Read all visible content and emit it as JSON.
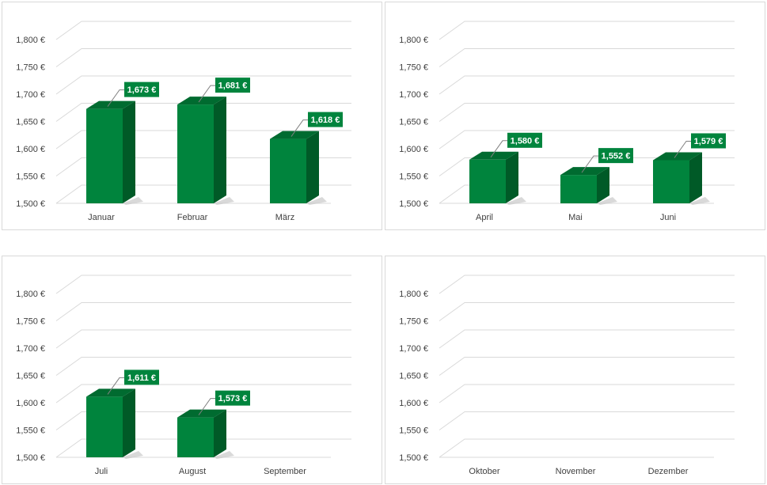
{
  "colors": {
    "bar_front": "#00843d",
    "bar_side": "#005a27",
    "bar_top": "#006b30",
    "label_bg": "#00843d",
    "grid": "#d9d9d9",
    "text": "#404040"
  },
  "chart_data": [
    {
      "type": "bar",
      "style": "3d-column",
      "categories": [
        "Januar",
        "Februar",
        "März"
      ],
      "values": [
        1673,
        1681,
        1618
      ],
      "data_labels": [
        "1,673 €",
        "1,681 €",
        "1,618 €"
      ],
      "yticks": [
        "1,500 €",
        "1,550 €",
        "1,600 €",
        "1,650 €",
        "1,700 €",
        "1,750 €",
        "1,800 €"
      ],
      "ylim": [
        1500,
        1800
      ],
      "grid": true
    },
    {
      "type": "bar",
      "style": "3d-column",
      "categories": [
        "April",
        "Mai",
        "Juni"
      ],
      "values": [
        1580,
        1552,
        1579
      ],
      "data_labels": [
        "1,580 €",
        "1,552 €",
        "1,579 €"
      ],
      "yticks": [
        "1,500 €",
        "1,550 €",
        "1,600 €",
        "1,650 €",
        "1,700 €",
        "1,750 €",
        "1,800 €"
      ],
      "ylim": [
        1500,
        1800
      ],
      "grid": true
    },
    {
      "type": "bar",
      "style": "3d-column",
      "categories": [
        "Juli",
        "August",
        "September"
      ],
      "values": [
        1611,
        1573,
        null
      ],
      "data_labels": [
        "1,611 €",
        "1,573 €",
        null
      ],
      "yticks": [
        "1,500 €",
        "1,550 €",
        "1,600 €",
        "1,650 €",
        "1,700 €",
        "1,750 €",
        "1,800 €"
      ],
      "ylim": [
        1500,
        1800
      ],
      "grid": true
    },
    {
      "type": "bar",
      "style": "3d-column",
      "categories": [
        "Oktober",
        "November",
        "Dezember"
      ],
      "values": [
        null,
        null,
        null
      ],
      "data_labels": [
        null,
        null,
        null
      ],
      "yticks": [
        "1,500 €",
        "1,550 €",
        "1,600 €",
        "1,650 €",
        "1,700 €",
        "1,750 €",
        "1,800 €"
      ],
      "ylim": [
        1500,
        1800
      ],
      "grid": true
    }
  ]
}
